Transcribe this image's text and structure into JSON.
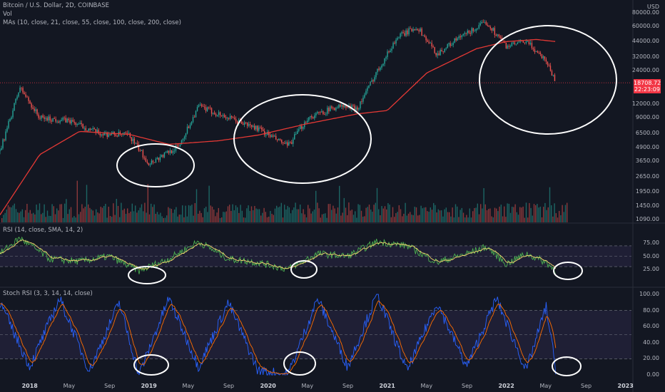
{
  "header": {
    "title": "Bitcoin / U.S. Dollar, 2D, COINBASE",
    "vol_label": "Vol",
    "ma_label": "MAs (10, close, 21, close, 55, close, 100, close, 200, close)",
    "rsi_label": "RSI (14, close, SMA, 14, 2)",
    "stoch_label": "Stoch RSI (3, 3, 14, 14, close)"
  },
  "price_axis": {
    "currency": "USD",
    "ticks": [
      "80000.00",
      "60000.00",
      "44000.00",
      "32000.00",
      "24000.00",
      "12000.00",
      "9000.00",
      "6500.00",
      "4900.00",
      "3650.00",
      "2650.00",
      "1950.00",
      "1450.00",
      "1090.00"
    ],
    "last_price": "18708.72",
    "countdown": "22:23:09"
  },
  "rsi_axis": {
    "ticks": [
      "75.00",
      "50.00",
      "25.00"
    ]
  },
  "stoch_axis": {
    "ticks": [
      "100.00",
      "80.00",
      "60.00",
      "40.00",
      "20.00",
      "0.00"
    ]
  },
  "time_axis": {
    "ticks": [
      {
        "label": "2018",
        "bold": true
      },
      {
        "label": "May",
        "bold": false
      },
      {
        "label": "Sep",
        "bold": false
      },
      {
        "label": "2019",
        "bold": true
      },
      {
        "label": "May",
        "bold": false
      },
      {
        "label": "Sep",
        "bold": false
      },
      {
        "label": "2020",
        "bold": true
      },
      {
        "label": "May",
        "bold": false
      },
      {
        "label": "Sep",
        "bold": false
      },
      {
        "label": "2021",
        "bold": true
      },
      {
        "label": "May",
        "bold": false
      },
      {
        "label": "Sep",
        "bold": false
      },
      {
        "label": "2022",
        "bold": true
      },
      {
        "label": "May",
        "bold": false
      },
      {
        "label": "Sep",
        "bold": false
      },
      {
        "label": "2023",
        "bold": true
      }
    ]
  },
  "colors": {
    "background": "#131722",
    "up": "#26a69a",
    "down": "#ef5350",
    "ma200": "#e53935",
    "rsi_line": "#4caf50",
    "rsi_signal": "#f5d76e",
    "stoch_k": "#2962ff",
    "stoch_d": "#ff6d00",
    "band_fill": "#7e57c2"
  },
  "chart_data": [
    {
      "type": "line",
      "name": "price",
      "x": [
        "2017-10",
        "2017-12",
        "2018-02",
        "2018-05",
        "2018-08",
        "2018-11",
        "2019-01",
        "2019-04",
        "2019-06",
        "2019-09",
        "2019-12",
        "2020-03",
        "2020-05",
        "2020-08",
        "2020-10",
        "2020-12",
        "2021-02",
        "2021-04",
        "2021-06",
        "2021-08",
        "2021-11",
        "2022-01",
        "2022-03",
        "2022-05",
        "2022-06"
      ],
      "y": [
        4500,
        17000,
        9000,
        8500,
        6500,
        6300,
        3500,
        5000,
        11500,
        9000,
        7200,
        5000,
        9000,
        11500,
        11000,
        24000,
        48000,
        60000,
        34000,
        46000,
        66000,
        40000,
        44000,
        30000,
        18708
      ],
      "ylim": [
        1090,
        80000
      ],
      "scale": "log"
    },
    {
      "type": "line",
      "name": "MA 200",
      "x": [
        "2017-10",
        "2018-02",
        "2018-06",
        "2018-11",
        "2019-03",
        "2019-08",
        "2019-12",
        "2020-05",
        "2020-10",
        "2021-01",
        "2021-05",
        "2021-10",
        "2022-01",
        "2022-04",
        "2022-06"
      ],
      "y": [
        1200,
        4200,
        6800,
        6400,
        5200,
        5600,
        6300,
        8000,
        9800,
        10500,
        23000,
        38000,
        44000,
        46000,
        44000
      ]
    },
    {
      "type": "line",
      "name": "RSI",
      "ylim": [
        0,
        100
      ],
      "bands": [
        30,
        50,
        70
      ],
      "x": [
        "2017-10",
        "2017-12",
        "2018-03",
        "2018-06",
        "2018-09",
        "2018-12",
        "2019-03",
        "2019-06",
        "2019-09",
        "2019-12",
        "2020-03",
        "2020-06",
        "2020-09",
        "2020-12",
        "2021-03",
        "2021-06",
        "2021-09",
        "2021-11",
        "2022-01",
        "2022-03",
        "2022-05",
        "2022-06"
      ],
      "y": [
        55,
        85,
        45,
        40,
        50,
        22,
        45,
        78,
        45,
        38,
        25,
        55,
        50,
        78,
        70,
        38,
        55,
        68,
        35,
        55,
        38,
        22
      ]
    },
    {
      "type": "line",
      "name": "Stoch RSI",
      "ylim": [
        0,
        100
      ],
      "bands": [
        20,
        50,
        80
      ],
      "x": [
        "2017-10",
        "2018-01",
        "2018-04",
        "2018-07",
        "2018-10",
        "2018-12",
        "2019-03",
        "2019-06",
        "2019-09",
        "2019-12",
        "2020-03",
        "2020-06",
        "2020-09",
        "2020-12",
        "2021-03",
        "2021-06",
        "2021-09",
        "2021-12",
        "2022-03",
        "2022-05",
        "2022-06"
      ],
      "y": [
        90,
        10,
        95,
        5,
        90,
        0,
        95,
        10,
        90,
        5,
        0,
        95,
        10,
        100,
        5,
        90,
        10,
        95,
        5,
        85,
        5
      ]
    }
  ]
}
